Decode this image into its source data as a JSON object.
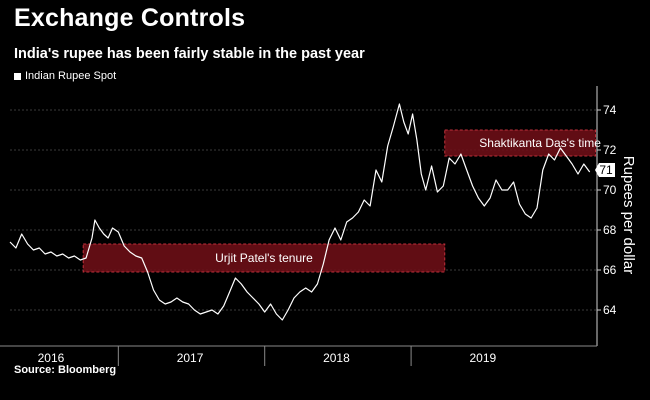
{
  "header": {
    "title": "Exchange Controls",
    "subtitle": "India's rupee has been fairly stable in the past year"
  },
  "legend": {
    "label": "Indian Rupee Spot"
  },
  "source": "Source: Bloomberg",
  "colors": {
    "background": "#000000",
    "line": "#ffffff",
    "annotation_fill": "#6e0f17",
    "annotation_border": "#c0303a",
    "grid": "#3a3a3a"
  },
  "chart_data": {
    "type": "line",
    "title": "Exchange Controls",
    "subtitle": "India's rupee has been fairly stable in the past year",
    "ylabel": "Rupees per dollar",
    "ylim": [
      62.5,
      75
    ],
    "yticks": [
      64,
      66,
      68,
      70,
      72,
      74
    ],
    "grid": true,
    "xlim": [
      2015.72,
      2019.73
    ],
    "year_labels": [
      {
        "label": "2016",
        "x": 2016.0
      },
      {
        "label": "2017",
        "x": 2016.95
      },
      {
        "label": "2018",
        "x": 2017.95
      },
      {
        "label": "2019",
        "x": 2018.95
      }
    ],
    "year_boundaries": [
      2016.46,
      2017.46,
      2018.46
    ],
    "last_value_label": "71",
    "last_value": 71,
    "series": [
      {
        "name": "Indian Rupee Spot",
        "x": [
          2015.72,
          2015.76,
          2015.8,
          2015.84,
          2015.88,
          2015.92,
          2015.96,
          2016.0,
          2016.04,
          2016.08,
          2016.12,
          2016.16,
          2016.2,
          2016.24,
          2016.28,
          2016.3,
          2016.33,
          2016.36,
          2016.39,
          2016.42,
          2016.46,
          2016.5,
          2016.54,
          2016.58,
          2016.62,
          2016.66,
          2016.7,
          2016.74,
          2016.78,
          2016.82,
          2016.86,
          2016.9,
          2016.94,
          2016.98,
          2017.02,
          2017.06,
          2017.1,
          2017.14,
          2017.18,
          2017.22,
          2017.26,
          2017.3,
          2017.34,
          2017.38,
          2017.42,
          2017.46,
          2017.5,
          2017.54,
          2017.58,
          2017.62,
          2017.66,
          2017.7,
          2017.74,
          2017.78,
          2017.82,
          2017.86,
          2017.9,
          2017.94,
          2017.98,
          2018.02,
          2018.06,
          2018.1,
          2018.14,
          2018.18,
          2018.22,
          2018.26,
          2018.3,
          2018.34,
          2018.38,
          2018.41,
          2018.44,
          2018.47,
          2018.5,
          2018.53,
          2018.56,
          2018.6,
          2018.64,
          2018.68,
          2018.72,
          2018.76,
          2018.8,
          2018.84,
          2018.88,
          2018.92,
          2018.96,
          2019.0,
          2019.04,
          2019.08,
          2019.12,
          2019.16,
          2019.2,
          2019.24,
          2019.28,
          2019.32,
          2019.36,
          2019.4,
          2019.44,
          2019.48,
          2019.52,
          2019.56,
          2019.6,
          2019.64,
          2019.68
        ],
        "values": [
          67.4,
          67.1,
          67.8,
          67.3,
          67.0,
          67.1,
          66.8,
          66.9,
          66.7,
          66.8,
          66.6,
          66.7,
          66.5,
          66.6,
          67.6,
          68.5,
          68.1,
          67.8,
          67.6,
          68.1,
          67.9,
          67.2,
          66.9,
          66.7,
          66.6,
          65.9,
          65.0,
          64.5,
          64.3,
          64.4,
          64.6,
          64.4,
          64.3,
          64.0,
          63.8,
          63.9,
          64.0,
          63.8,
          64.2,
          64.9,
          65.6,
          65.3,
          64.9,
          64.6,
          64.3,
          63.9,
          64.3,
          63.8,
          63.5,
          64.0,
          64.6,
          64.9,
          65.1,
          64.9,
          65.3,
          66.3,
          67.5,
          68.1,
          67.5,
          68.4,
          68.6,
          68.9,
          69.5,
          69.2,
          71.0,
          70.4,
          72.2,
          73.2,
          74.3,
          73.4,
          72.8,
          73.8,
          72.5,
          70.8,
          70.0,
          71.2,
          69.9,
          70.2,
          71.6,
          71.3,
          71.8,
          71.0,
          70.2,
          69.6,
          69.2,
          69.6,
          70.5,
          70.0,
          70.0,
          70.4,
          69.3,
          68.8,
          68.6,
          69.1,
          71.0,
          71.8,
          71.5,
          72.1,
          71.7,
          71.3,
          70.8,
          71.3,
          70.9
        ]
      }
    ],
    "annotations": [
      {
        "label": "Urjit Patel's tenure",
        "x_start": 2016.22,
        "x_end": 2018.69,
        "y_low": 65.9,
        "y_high": 67.3
      },
      {
        "label": "Shaktikanta Das's time",
        "x_start": 2018.69,
        "x_end": 2019.72,
        "y_low": 71.7,
        "y_high": 73.0
      }
    ]
  }
}
